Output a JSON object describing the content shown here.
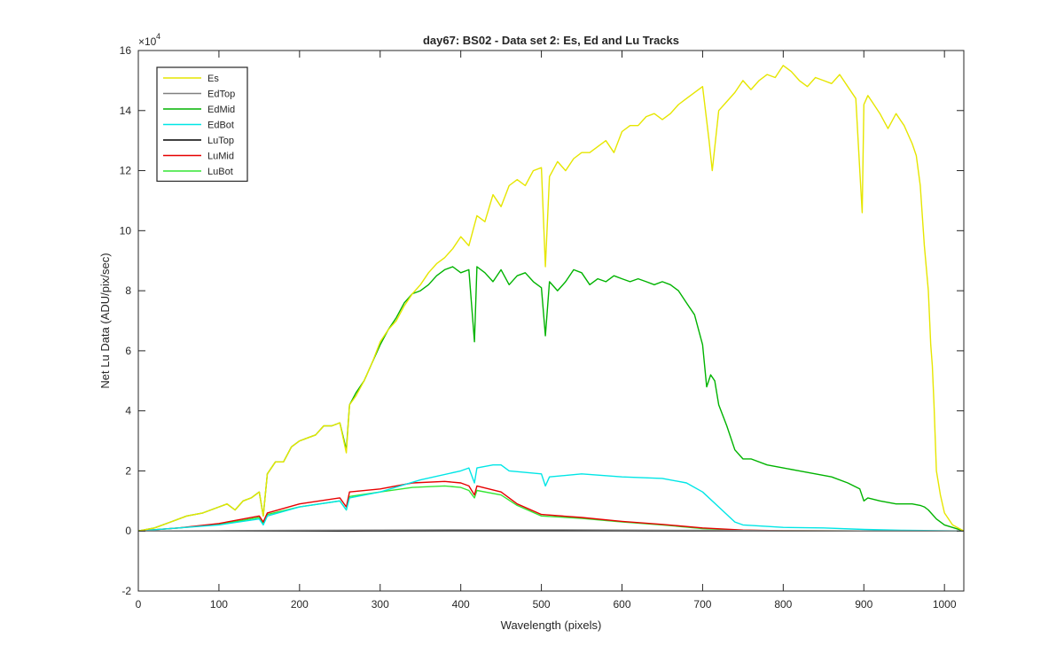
{
  "chart_data": {
    "type": "line",
    "title": "day67: BS02 - Data set 2: Es, Ed and Lu Tracks",
    "xlabel": "Wavelength (pixels)",
    "ylabel": "Net Lu Data (ADU/pix/sec)",
    "y_exponent_label": "×10",
    "y_exponent_power": "4",
    "xlim": [
      0,
      1024
    ],
    "ylim": [
      -2,
      16
    ],
    "y_scale_note": "values in units of 10^4",
    "xticks": [
      0,
      100,
      200,
      300,
      400,
      500,
      600,
      700,
      800,
      900,
      1000
    ],
    "yticks": [
      -2,
      0,
      2,
      4,
      6,
      8,
      10,
      12,
      14,
      16
    ],
    "grid": false,
    "legend_position": "top-left",
    "series": [
      {
        "name": "Es",
        "color": "#e6e600",
        "x": [
          0,
          20,
          40,
          60,
          80,
          100,
          110,
          120,
          130,
          140,
          150,
          155,
          160,
          170,
          180,
          190,
          200,
          210,
          220,
          230,
          240,
          250,
          258,
          262,
          270,
          280,
          290,
          300,
          310,
          320,
          330,
          340,
          350,
          360,
          370,
          380,
          390,
          400,
          410,
          420,
          430,
          440,
          450,
          460,
          470,
          480,
          490,
          500,
          505,
          510,
          520,
          530,
          540,
          550,
          560,
          570,
          580,
          590,
          600,
          610,
          620,
          630,
          640,
          650,
          660,
          670,
          680,
          690,
          700,
          708,
          712,
          720,
          730,
          740,
          750,
          760,
          770,
          780,
          790,
          800,
          810,
          820,
          830,
          840,
          850,
          860,
          870,
          880,
          890,
          895,
          898,
          900,
          905,
          910,
          920,
          930,
          940,
          950,
          960,
          965,
          970,
          975,
          980,
          983,
          985,
          987,
          990,
          995,
          1000,
          1010,
          1024
        ],
        "y": [
          0,
          0.1,
          0.3,
          0.5,
          0.6,
          0.8,
          0.9,
          0.7,
          1.0,
          1.1,
          1.3,
          0.5,
          1.9,
          2.3,
          2.3,
          2.8,
          3.0,
          3.1,
          3.2,
          3.5,
          3.5,
          3.6,
          2.6,
          4.2,
          4.5,
          5.0,
          5.6,
          6.3,
          6.7,
          7.0,
          7.5,
          7.9,
          8.2,
          8.6,
          8.9,
          9.1,
          9.4,
          9.8,
          9.5,
          10.5,
          10.3,
          11.2,
          10.8,
          11.5,
          11.7,
          11.5,
          12.0,
          12.1,
          8.8,
          11.8,
          12.3,
          12.0,
          12.4,
          12.6,
          12.6,
          12.8,
          13.0,
          12.6,
          13.3,
          13.5,
          13.5,
          13.8,
          13.9,
          13.7,
          13.9,
          14.2,
          14.4,
          14.6,
          14.8,
          13.0,
          12.0,
          14.0,
          14.3,
          14.6,
          15.0,
          14.7,
          15.0,
          15.2,
          15.1,
          15.5,
          15.3,
          15.0,
          14.8,
          15.1,
          15.0,
          14.9,
          15.2,
          14.8,
          14.4,
          12.0,
          10.6,
          14.2,
          14.5,
          14.3,
          13.9,
          13.4,
          13.9,
          13.5,
          12.9,
          12.5,
          11.5,
          9.5,
          8.0,
          6.2,
          5.5,
          4.2,
          2.0,
          1.2,
          0.6,
          0.2,
          0
        ]
      },
      {
        "name": "EdTop",
        "color": "#808080",
        "x": [
          0,
          100,
          200,
          300,
          400,
          500,
          600,
          700,
          800,
          900,
          1024
        ],
        "y": [
          0,
          0.01,
          0.02,
          0.03,
          0.04,
          0.04,
          0.03,
          0.02,
          0.01,
          0.0,
          0
        ]
      },
      {
        "name": "EdMid",
        "color": "#00b300",
        "x": [
          0,
          20,
          40,
          60,
          80,
          100,
          110,
          120,
          130,
          140,
          150,
          155,
          160,
          170,
          180,
          190,
          200,
          210,
          220,
          230,
          240,
          250,
          258,
          262,
          270,
          280,
          290,
          300,
          310,
          320,
          330,
          340,
          350,
          360,
          370,
          380,
          390,
          400,
          410,
          417,
          420,
          430,
          440,
          450,
          460,
          470,
          480,
          490,
          500,
          505,
          510,
          520,
          530,
          540,
          550,
          560,
          570,
          580,
          590,
          600,
          610,
          620,
          630,
          640,
          650,
          660,
          670,
          680,
          690,
          700,
          705,
          710,
          715,
          720,
          730,
          740,
          750,
          760,
          780,
          800,
          820,
          840,
          860,
          880,
          895,
          900,
          905,
          920,
          940,
          960,
          970,
          975,
          980,
          990,
          1000,
          1024
        ],
        "y": [
          0,
          0.1,
          0.3,
          0.5,
          0.6,
          0.8,
          0.9,
          0.7,
          1.0,
          1.1,
          1.3,
          0.5,
          1.9,
          2.3,
          2.3,
          2.8,
          3.0,
          3.1,
          3.2,
          3.5,
          3.5,
          3.6,
          2.7,
          4.2,
          4.6,
          5.0,
          5.6,
          6.2,
          6.7,
          7.1,
          7.6,
          7.9,
          8.0,
          8.2,
          8.5,
          8.7,
          8.8,
          8.6,
          8.7,
          6.3,
          8.8,
          8.6,
          8.3,
          8.7,
          8.2,
          8.5,
          8.6,
          8.3,
          8.1,
          6.5,
          8.3,
          8.0,
          8.3,
          8.7,
          8.6,
          8.2,
          8.4,
          8.3,
          8.5,
          8.4,
          8.3,
          8.4,
          8.3,
          8.2,
          8.3,
          8.2,
          8.0,
          7.6,
          7.2,
          6.2,
          4.8,
          5.2,
          5.0,
          4.2,
          3.5,
          2.7,
          2.4,
          2.4,
          2.2,
          2.1,
          2.0,
          1.9,
          1.8,
          1.6,
          1.4,
          1.0,
          1.1,
          1.0,
          0.9,
          0.9,
          0.85,
          0.8,
          0.7,
          0.4,
          0.2,
          0
        ]
      },
      {
        "name": "EdBot",
        "color": "#00e6e6",
        "x": [
          0,
          50,
          100,
          150,
          155,
          160,
          200,
          250,
          258,
          262,
          300,
          350,
          400,
          410,
          417,
          420,
          440,
          450,
          460,
          500,
          505,
          510,
          550,
          600,
          650,
          680,
          700,
          720,
          740,
          750,
          780,
          800,
          850,
          900,
          950,
          1024
        ],
        "y": [
          0,
          0.1,
          0.2,
          0.4,
          0.2,
          0.5,
          0.8,
          1.0,
          0.7,
          1.1,
          1.3,
          1.7,
          2.0,
          2.1,
          1.6,
          2.1,
          2.2,
          2.2,
          2.0,
          1.9,
          1.5,
          1.8,
          1.9,
          1.8,
          1.75,
          1.6,
          1.3,
          0.8,
          0.3,
          0.2,
          0.15,
          0.12,
          0.1,
          0.05,
          0.02,
          0
        ]
      },
      {
        "name": "LuTop",
        "color": "#000000",
        "x": [
          0,
          200,
          400,
          600,
          800,
          1024
        ],
        "y": [
          0,
          0.0,
          0.01,
          0.01,
          0.0,
          0
        ]
      },
      {
        "name": "LuMid",
        "color": "#e60000",
        "x": [
          0,
          50,
          100,
          150,
          155,
          160,
          200,
          250,
          258,
          262,
          300,
          340,
          380,
          400,
          410,
          417,
          420,
          450,
          470,
          500,
          550,
          600,
          650,
          700,
          750,
          800,
          900,
          1024
        ],
        "y": [
          0,
          0.1,
          0.25,
          0.5,
          0.3,
          0.6,
          0.9,
          1.1,
          0.8,
          1.3,
          1.4,
          1.6,
          1.65,
          1.6,
          1.5,
          1.2,
          1.5,
          1.3,
          0.9,
          0.55,
          0.45,
          0.32,
          0.22,
          0.1,
          0.03,
          0.01,
          0.0,
          0
        ]
      },
      {
        "name": "LuBot",
        "color": "#33e633",
        "x": [
          0,
          50,
          100,
          150,
          155,
          160,
          200,
          250,
          258,
          262,
          300,
          340,
          380,
          400,
          410,
          417,
          420,
          450,
          470,
          500,
          550,
          600,
          650,
          700,
          750,
          800,
          900,
          1024
        ],
        "y": [
          0,
          0.1,
          0.22,
          0.45,
          0.25,
          0.55,
          0.8,
          1.0,
          0.7,
          1.15,
          1.3,
          1.45,
          1.5,
          1.45,
          1.35,
          1.1,
          1.35,
          1.2,
          0.85,
          0.5,
          0.42,
          0.3,
          0.2,
          0.08,
          0.02,
          0.01,
          0.0,
          0
        ]
      }
    ]
  }
}
